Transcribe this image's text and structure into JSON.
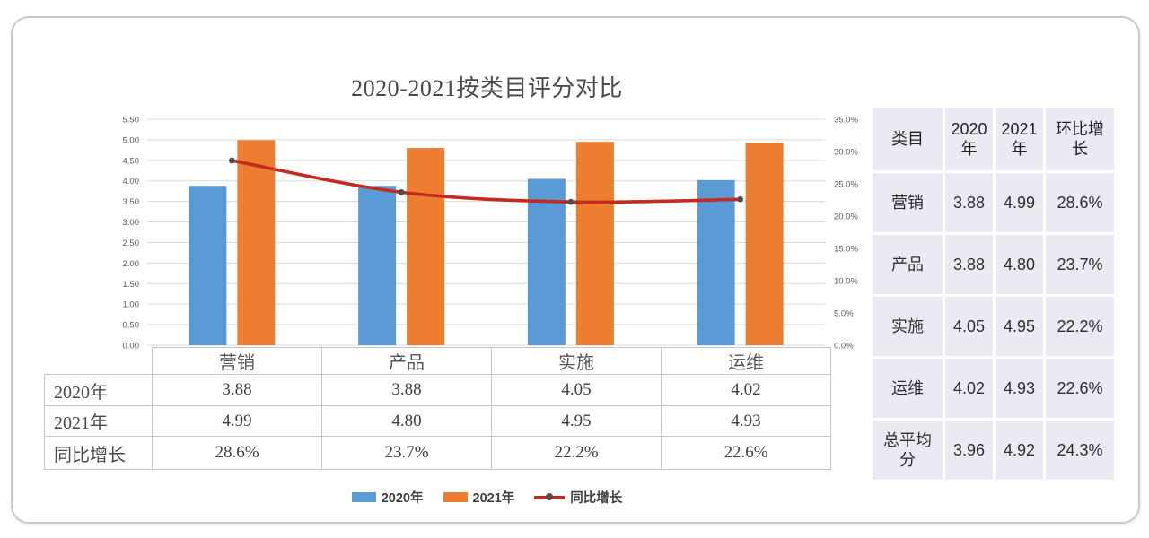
{
  "title": "2020-2021按类目评分对比",
  "chart_data": {
    "type": "bar+line",
    "categories": [
      "营销",
      "产品",
      "实施",
      "运维"
    ],
    "series": [
      {
        "name": "2020年",
        "type": "bar",
        "color": "#5B9BD5",
        "values": [
          3.88,
          3.88,
          4.05,
          4.02
        ]
      },
      {
        "name": "2021年",
        "type": "bar",
        "color": "#ED7D31",
        "values": [
          4.99,
          4.8,
          4.95,
          4.93
        ]
      },
      {
        "name": "同比增长",
        "type": "line",
        "axis": "right",
        "color": "#C32A20",
        "marker_color": "#4f4f4f",
        "values": [
          28.6,
          23.7,
          22.2,
          22.6
        ]
      }
    ],
    "left_axis": {
      "min": 0,
      "max": 5.5,
      "ticks": [
        "0.00",
        "0.50",
        "1.00",
        "1.50",
        "2.00",
        "2.50",
        "3.00",
        "3.50",
        "4.00",
        "4.50",
        "5.00",
        "5.50"
      ]
    },
    "right_axis": {
      "min": 0,
      "max": 35,
      "ticks": [
        "0.0%",
        "5.0%",
        "10.0%",
        "15.0%",
        "20.0%",
        "25.0%",
        "30.0%",
        "35.0%"
      ]
    },
    "grid": true,
    "gridline_color": "#D9D9D9",
    "legend_position": "bottom",
    "title": "2020-2021按类目评分对比"
  },
  "data_table": {
    "rows": [
      {
        "label": "2020年",
        "values": [
          "3.88",
          "3.88",
          "4.05",
          "4.02"
        ]
      },
      {
        "label": "2021年",
        "values": [
          "4.99",
          "4.80",
          "4.95",
          "4.93"
        ]
      },
      {
        "label": "同比增长",
        "values": [
          "28.6%",
          "23.7%",
          "22.2%",
          "22.6%"
        ]
      }
    ]
  },
  "summary_table": {
    "headers": [
      "类目",
      "2020年",
      "2021年",
      "环比增长"
    ],
    "rows": [
      [
        "营销",
        "3.88",
        "4.99",
        "28.6%"
      ],
      [
        "产品",
        "3.88",
        "4.80",
        "23.7%"
      ],
      [
        "实施",
        "4.05",
        "4.95",
        "22.2%"
      ],
      [
        "运维",
        "4.02",
        "4.93",
        "22.6%"
      ],
      [
        "总平均分",
        "3.96",
        "4.92",
        "24.3%"
      ]
    ],
    "cell_color": "#E9EAF2"
  }
}
